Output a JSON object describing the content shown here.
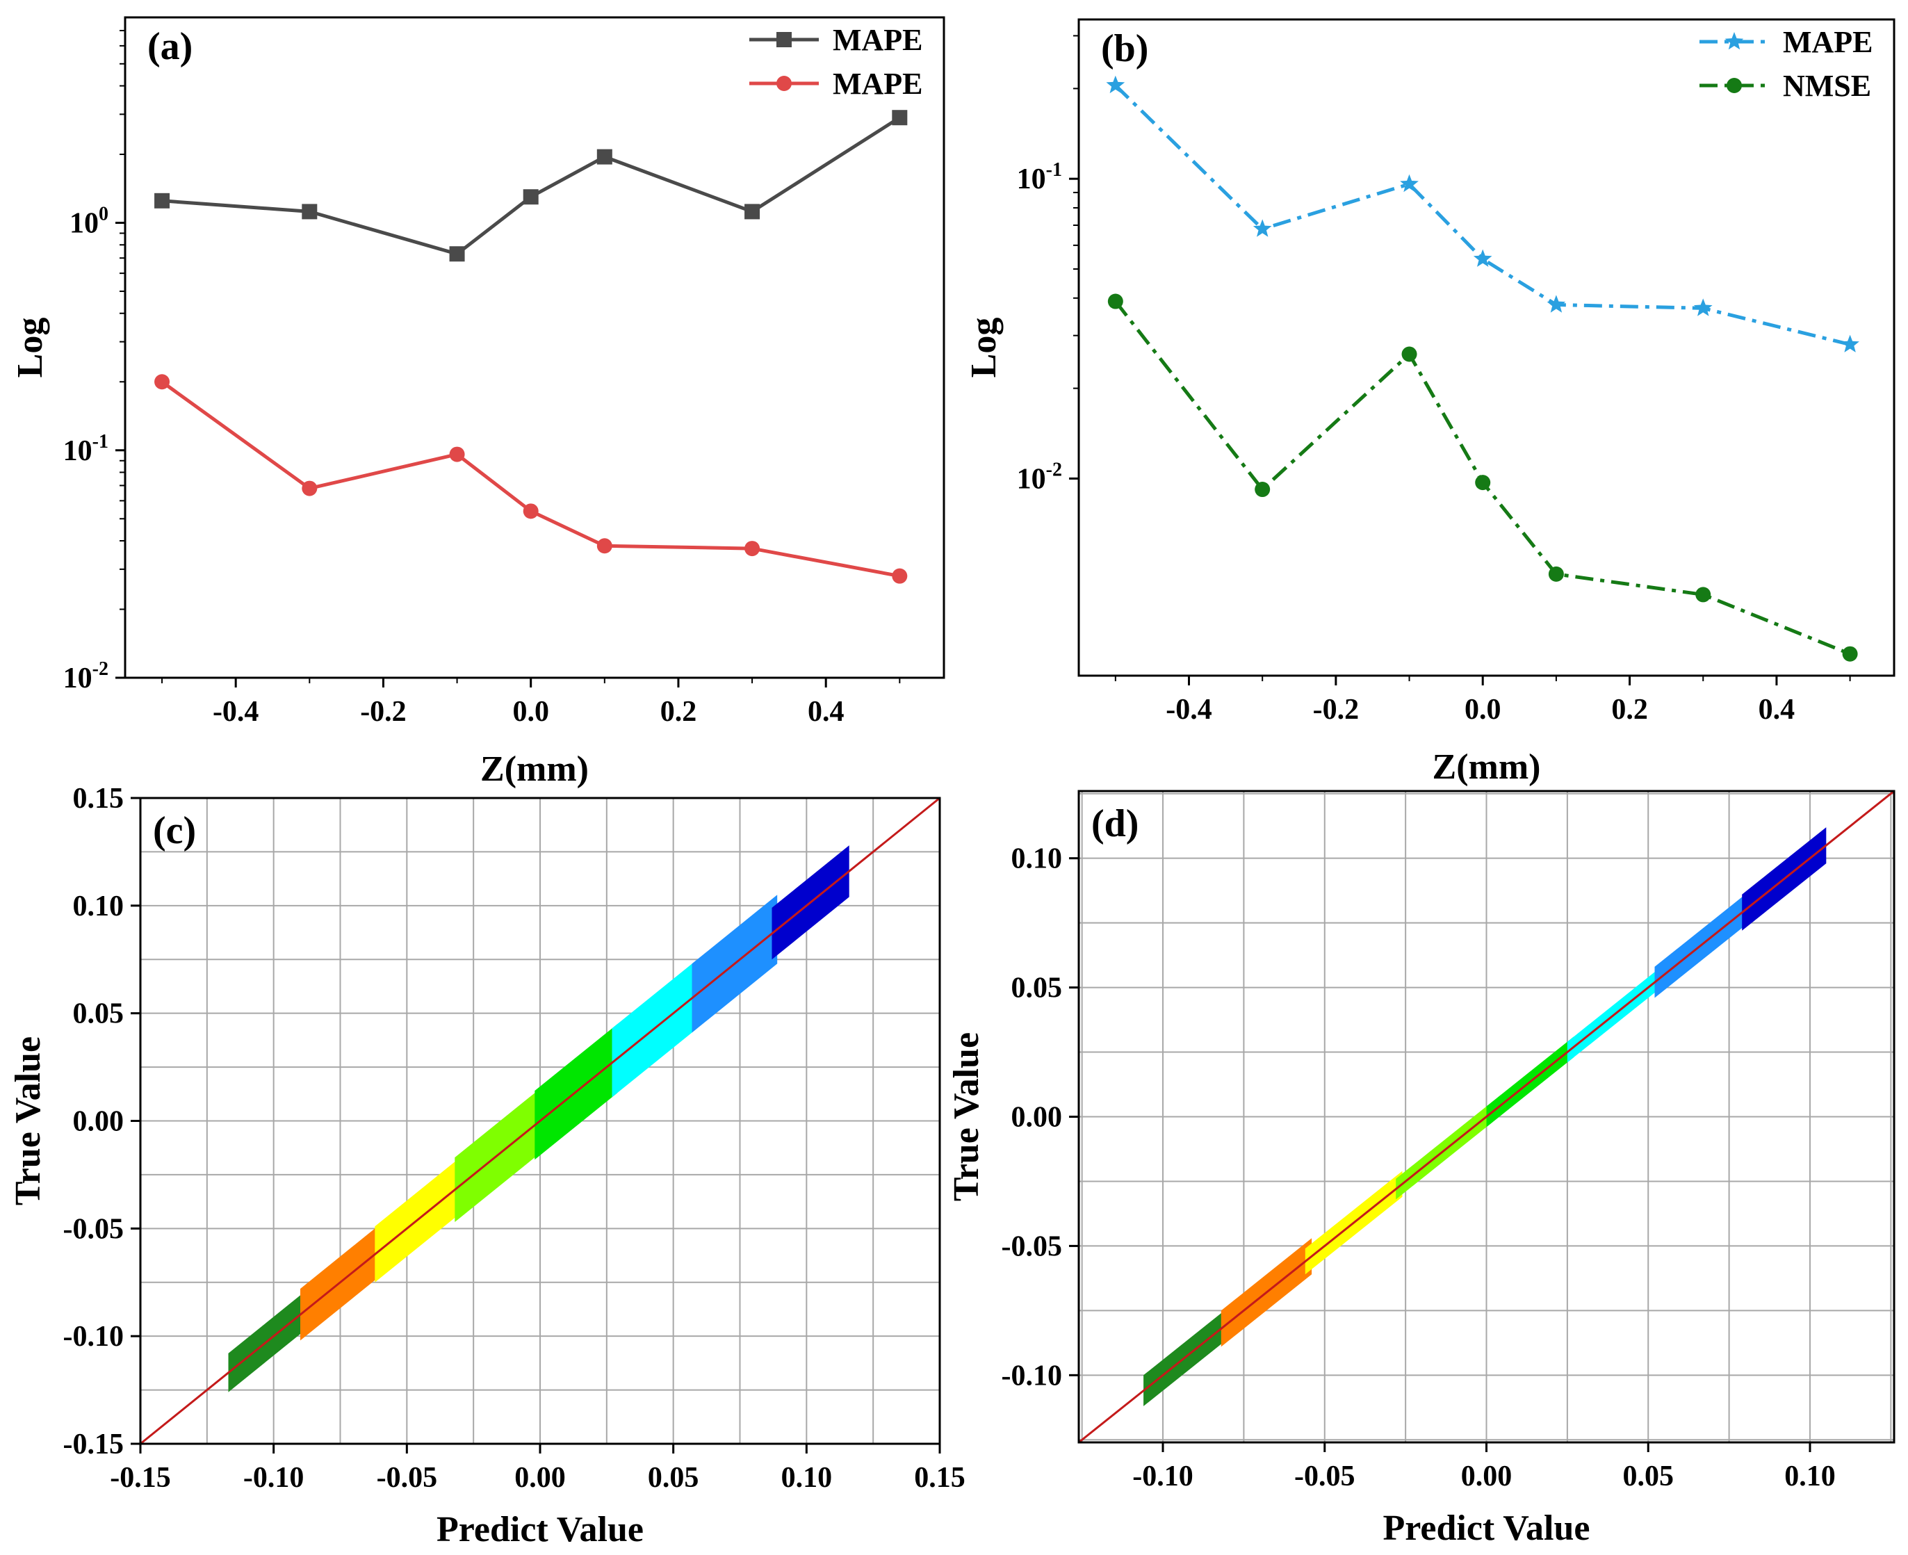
{
  "chart_data": [
    {
      "panel": "(a)",
      "type": "line",
      "yscale": "log",
      "xlabel": "Z(mm)",
      "ylabel": "Log",
      "xlim": [
        -0.55,
        0.56
      ],
      "ylim": [
        0.01,
        8
      ],
      "x_ticks": [
        -0.4,
        -0.2,
        0.0,
        0.2,
        0.4
      ],
      "x_tick_labels": [
        "-0.4",
        "-0.2",
        "0.0",
        "0.2",
        "0.4"
      ],
      "y_ticks": [
        0.01,
        0.1,
        1
      ],
      "y_tick_labels": [
        {
          "base": "10",
          "exp": "-2"
        },
        {
          "base": "10",
          "exp": "-1"
        },
        {
          "base": "10",
          "exp": "0"
        }
      ],
      "legend_position": "top-right",
      "x": [
        -0.5,
        -0.3,
        -0.1,
        0.0,
        0.1,
        0.3,
        0.5
      ],
      "series": [
        {
          "name": "MAPE",
          "color": "#4a4a4a",
          "marker": "square",
          "line": "solid",
          "values": [
            1.25,
            1.12,
            0.73,
            1.3,
            1.95,
            1.12,
            2.9
          ]
        },
        {
          "name": "MAPE",
          "color": "#e04848",
          "marker": "circle",
          "line": "solid",
          "values": [
            0.2,
            0.068,
            0.096,
            0.054,
            0.038,
            0.037,
            0.028
          ]
        }
      ]
    },
    {
      "panel": "(b)",
      "type": "line",
      "yscale": "log",
      "xlabel": "Z(mm)",
      "ylabel": "Log",
      "xlim": [
        -0.55,
        0.56
      ],
      "ylim": [
        0.0022,
        0.34
      ],
      "x_ticks": [
        -0.4,
        -0.2,
        0.0,
        0.2,
        0.4
      ],
      "x_tick_labels": [
        "-0.4",
        "-0.2",
        "0.0",
        "0.2",
        "0.4"
      ],
      "y_ticks": [
        0.01,
        0.1
      ],
      "y_tick_labels": [
        {
          "base": "10",
          "exp": "-2"
        },
        {
          "base": "10",
          "exp": "-1"
        }
      ],
      "legend_position": "top-right",
      "x": [
        -0.5,
        -0.3,
        -0.1,
        0.0,
        0.1,
        0.3,
        0.5
      ],
      "series": [
        {
          "name": "MAPE",
          "color": "#2aa0e0",
          "marker": "star",
          "line": "dash-dot",
          "values": [
            0.205,
            0.068,
            0.096,
            0.054,
            0.038,
            0.037,
            0.028
          ]
        },
        {
          "name": "NMSE",
          "color": "#157a15",
          "marker": "circle",
          "line": "dash-dot",
          "values": [
            0.039,
            0.0092,
            0.026,
            0.0097,
            0.0048,
            0.0041,
            0.0026
          ]
        }
      ]
    },
    {
      "panel": "(c)",
      "type": "scatter",
      "xlabel": "Predict Value",
      "ylabel": "True Value",
      "xlim": [
        -0.15,
        0.15
      ],
      "ylim": [
        -0.15,
        0.15
      ],
      "x_ticks": [
        -0.15,
        -0.1,
        -0.05,
        0.0,
        0.05,
        0.1,
        0.15
      ],
      "x_tick_labels": [
        "-0.15",
        "-0.10",
        "-0.05",
        "0.00",
        "0.05",
        "0.10",
        "0.15"
      ],
      "y_ticks": [
        -0.15,
        -0.1,
        -0.05,
        0.0,
        0.05,
        0.1,
        0.15
      ],
      "y_tick_labels": [
        "-0.15",
        "-0.10",
        "-0.05",
        "0.00",
        "0.05",
        "0.10",
        "0.15"
      ],
      "grid": true,
      "reference_line": {
        "from": [
          -0.15,
          -0.15
        ],
        "to": [
          0.15,
          0.15
        ],
        "color": "#c41a1a"
      },
      "bands": [
        {
          "color": "#1e8a1e",
          "x_range": [
            -0.117,
            -0.088
          ],
          "width": 0.009
        },
        {
          "color": "#ff7f00",
          "x_range": [
            -0.09,
            -0.06
          ],
          "width": 0.012
        },
        {
          "color": "#ffff00",
          "x_range": [
            -0.062,
            -0.03
          ],
          "width": 0.013
        },
        {
          "color": "#7fff00",
          "x_range": [
            -0.032,
            0.0
          ],
          "width": 0.015
        },
        {
          "color": "#00e600",
          "x_range": [
            -0.002,
            0.029
          ],
          "width": 0.016
        },
        {
          "color": "#00ffff",
          "x_range": [
            0.027,
            0.059
          ],
          "width": 0.016
        },
        {
          "color": "#1e90ff",
          "x_range": [
            0.057,
            0.089
          ],
          "width": 0.016
        },
        {
          "color": "#0000cd",
          "x_range": [
            0.087,
            0.116
          ],
          "width": 0.012
        }
      ]
    },
    {
      "panel": "(d)",
      "type": "scatter",
      "xlabel": "Predict Value",
      "ylabel": "True Value",
      "xlim": [
        -0.126,
        0.126
      ],
      "ylim": [
        -0.126,
        0.126
      ],
      "x_ticks": [
        -0.1,
        -0.05,
        0.0,
        0.05,
        0.1
      ],
      "x_tick_labels": [
        "-0.10",
        "-0.05",
        "0.00",
        "0.05",
        "0.10"
      ],
      "y_ticks": [
        -0.1,
        -0.05,
        0.0,
        0.05,
        0.1
      ],
      "y_tick_labels": [
        "-0.10",
        "-0.05",
        "0.00",
        "0.05",
        "0.10"
      ],
      "grid": true,
      "reference_line": {
        "from": [
          -0.126,
          -0.126
        ],
        "to": [
          0.126,
          0.126
        ],
        "color": "#c41a1a"
      },
      "bands": [
        {
          "color": "#1e8a1e",
          "x_range": [
            -0.106,
            -0.08
          ],
          "width": 0.006
        },
        {
          "color": "#ff7f00",
          "x_range": [
            -0.082,
            -0.054
          ],
          "width": 0.007
        },
        {
          "color": "#ffff00",
          "x_range": [
            -0.056,
            -0.026
          ],
          "width": 0.005
        },
        {
          "color": "#7fff00",
          "x_range": [
            -0.028,
            0.002
          ],
          "width": 0.004
        },
        {
          "color": "#00e600",
          "x_range": [
            0.0,
            0.027
          ],
          "width": 0.004
        },
        {
          "color": "#00ffff",
          "x_range": [
            0.025,
            0.054
          ],
          "width": 0.004
        },
        {
          "color": "#1e90ff",
          "x_range": [
            0.052,
            0.081
          ],
          "width": 0.006
        },
        {
          "color": "#0000cd",
          "x_range": [
            0.079,
            0.105
          ],
          "width": 0.007
        }
      ]
    }
  ]
}
